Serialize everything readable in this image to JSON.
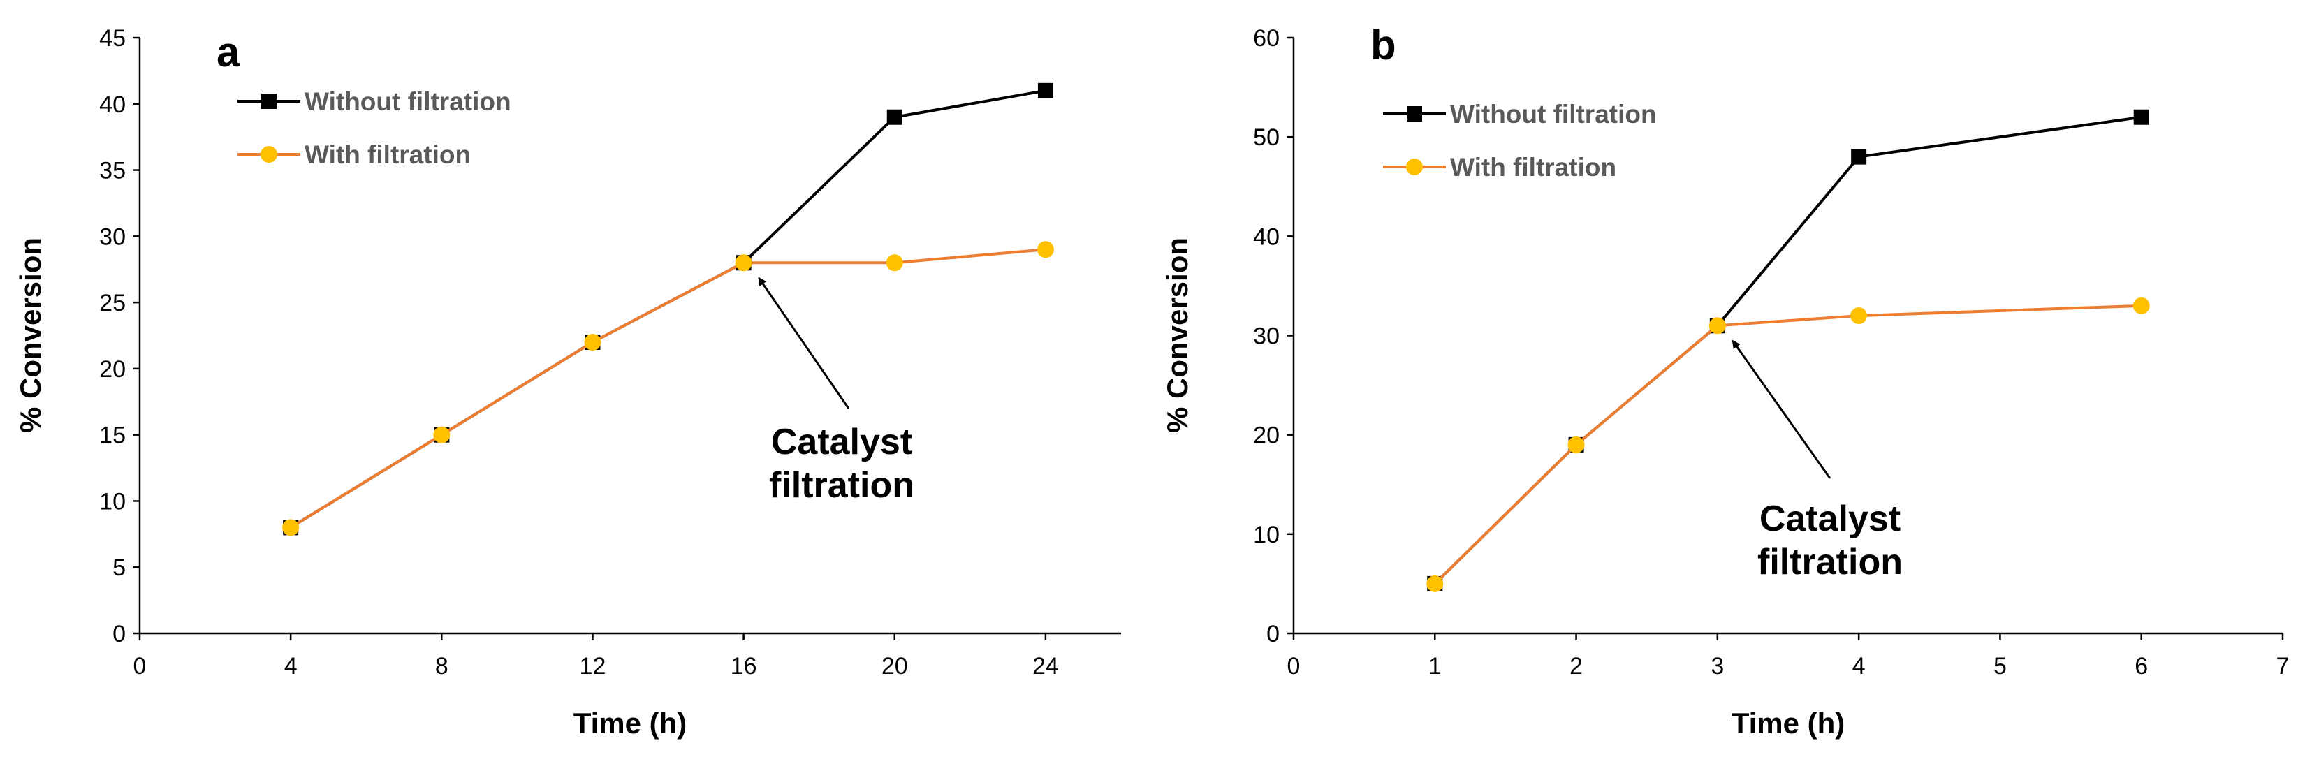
{
  "colors": {
    "without_filtration": "#000000",
    "with_filtration_line": "#ED7D31",
    "with_filtration_marker": "#FFC000",
    "axis": "#000000",
    "legend_text": "#595959"
  },
  "chart_data": [
    {
      "type": "line",
      "panel_label": "a",
      "xlabel": "Time (h)",
      "ylabel": "% Conversion",
      "xlim": [
        0,
        26
      ],
      "ylim": [
        0,
        45
      ],
      "xticks": [
        0,
        4,
        8,
        12,
        16,
        20,
        24
      ],
      "yticks": [
        0,
        5,
        10,
        15,
        20,
        25,
        30,
        35,
        40,
        45
      ],
      "grid": false,
      "legend_position": "top-left",
      "series": [
        {
          "name": "Without filtration",
          "marker": "square",
          "x": [
            4,
            8,
            12,
            16,
            20,
            24
          ],
          "y": [
            8,
            15,
            22,
            28,
            39,
            41
          ]
        },
        {
          "name": "With filtration",
          "marker": "circle",
          "x": [
            4,
            8,
            12,
            16,
            20,
            24
          ],
          "y": [
            8,
            15,
            22,
            28,
            28,
            29
          ]
        }
      ],
      "annotation": {
        "lines": [
          "Catalyst",
          "filtration"
        ],
        "points_to": [
          16,
          28
        ]
      }
    },
    {
      "type": "line",
      "panel_label": "b",
      "xlabel": "Time (h)",
      "ylabel": "% Conversion",
      "xlim": [
        0,
        7
      ],
      "ylim": [
        0,
        60
      ],
      "xticks": [
        0,
        1,
        2,
        3,
        4,
        5,
        6,
        7
      ],
      "yticks": [
        0,
        10,
        20,
        30,
        40,
        50,
        60
      ],
      "grid": false,
      "legend_position": "top-left",
      "series": [
        {
          "name": "Without filtration",
          "marker": "square",
          "x": [
            1,
            2,
            3,
            4,
            6
          ],
          "y": [
            5,
            19,
            31,
            48,
            52
          ]
        },
        {
          "name": "With filtration",
          "marker": "circle",
          "x": [
            1,
            2,
            3,
            4,
            6
          ],
          "y": [
            5,
            19,
            31,
            32,
            33
          ]
        }
      ],
      "annotation": {
        "lines": [
          "Catalyst",
          "filtration"
        ],
        "points_to": [
          3,
          31
        ]
      }
    }
  ]
}
